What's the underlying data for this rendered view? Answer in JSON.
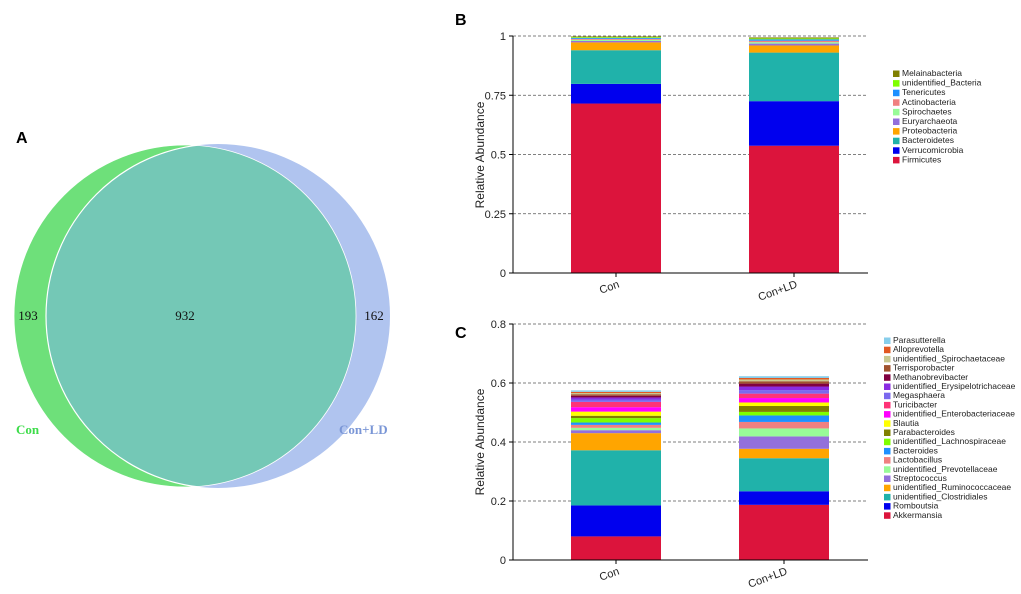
{
  "panels": {
    "A": "A",
    "B": "B",
    "C": "C"
  },
  "venn": {
    "left_label": "Con",
    "right_label": "Con+LD",
    "left_only": "193",
    "shared": "932",
    "right_only": "162",
    "left_color": "#6ee07a",
    "right_color": "#b0c4ef",
    "overlap_color": "#74c8b6",
    "left_label_color": "#3ddc4a",
    "right_label_color": "#7a96d6"
  },
  "chart_data": [
    {
      "type": "bar",
      "stacked": true,
      "panel": "B",
      "ylabel": "Relative Abundance",
      "xlabel": "",
      "ylim": [
        0,
        1
      ],
      "yticks": [
        0,
        0.25,
        0.5,
        0.75,
        1
      ],
      "ytick_labels": [
        "0",
        "0.25",
        "0.5",
        "0.75",
        "1"
      ],
      "categories": [
        "Con",
        "Con+LD"
      ],
      "series": [
        {
          "name": "Firmicutes",
          "color": "#dc143c",
          "values": [
            0.715,
            0.537
          ]
        },
        {
          "name": "Verrucomicrobia",
          "color": "#0000ee",
          "values": [
            0.083,
            0.188
          ]
        },
        {
          "name": "Bacteroidetes",
          "color": "#20b2aa",
          "values": [
            0.142,
            0.205
          ]
        },
        {
          "name": "Proteobacteria",
          "color": "#ffa500",
          "values": [
            0.033,
            0.03
          ]
        },
        {
          "name": "Euryarchaeota",
          "color": "#9370db",
          "values": [
            0.006,
            0.008
          ]
        },
        {
          "name": "Spirochaetes",
          "color": "#98fb98",
          "values": [
            0.005,
            0.006
          ]
        },
        {
          "name": "Actinobacteria",
          "color": "#f08080",
          "values": [
            0.004,
            0.006
          ]
        },
        {
          "name": "Tenericutes",
          "color": "#1e90ff",
          "values": [
            0.004,
            0.006
          ]
        },
        {
          "name": "unidentified_Bacteria",
          "color": "#7fff00",
          "values": [
            0.003,
            0.004
          ]
        },
        {
          "name": "Melainabacteria",
          "color": "#808000",
          "values": [
            0.003,
            0.004
          ]
        }
      ]
    },
    {
      "type": "bar",
      "stacked": true,
      "panel": "C",
      "ylabel": "Relative Abundance",
      "xlabel": "",
      "ylim": [
        0,
        0.8
      ],
      "yticks": [
        0,
        0.2,
        0.4,
        0.6,
        0.8
      ],
      "ytick_labels": [
        "0",
        "0.2",
        "0.4",
        "0.6",
        "0.8"
      ],
      "categories": [
        "Con",
        "Con+LD"
      ],
      "series": [
        {
          "name": "Akkermansia",
          "color": "#dc143c",
          "values": [
            0.08,
            0.187
          ]
        },
        {
          "name": "Romboutsia",
          "color": "#0000ee",
          "values": [
            0.105,
            0.046
          ]
        },
        {
          "name": "unidentified_Clostridiales",
          "color": "#20b2aa",
          "values": [
            0.187,
            0.112
          ]
        },
        {
          "name": "unidentified_Ruminococcaceae",
          "color": "#ffa500",
          "values": [
            0.058,
            0.032
          ]
        },
        {
          "name": "Streptococcus",
          "color": "#9370db",
          "values": [
            0.01,
            0.042
          ]
        },
        {
          "name": "unidentified_Prevotellaceae",
          "color": "#98fb98",
          "values": [
            0.008,
            0.027
          ]
        },
        {
          "name": "Lactobacillus",
          "color": "#f08080",
          "values": [
            0.01,
            0.022
          ]
        },
        {
          "name": "Bacteroides",
          "color": "#1e90ff",
          "values": [
            0.008,
            0.022
          ]
        },
        {
          "name": "unidentified_Lachnospiraceae",
          "color": "#7fff00",
          "values": [
            0.015,
            0.012
          ]
        },
        {
          "name": "Parabacteroides",
          "color": "#808000",
          "values": [
            0.008,
            0.02
          ]
        },
        {
          "name": "Blautia",
          "color": "#ffff00",
          "values": [
            0.014,
            0.012
          ]
        },
        {
          "name": "unidentified_Enterobacteriaceae",
          "color": "#ff00ff",
          "values": [
            0.015,
            0.015
          ]
        },
        {
          "name": "Turicibacter",
          "color": "#ff3377",
          "values": [
            0.018,
            0.015
          ]
        },
        {
          "name": "Megasphaera",
          "color": "#7b68ee",
          "values": [
            0.008,
            0.012
          ]
        },
        {
          "name": "unidentified_Erysipelotrichaceae",
          "color": "#8a2be2",
          "values": [
            0.007,
            0.012
          ]
        },
        {
          "name": "Methanobrevibacter",
          "color": "#800040",
          "values": [
            0.006,
            0.01
          ]
        },
        {
          "name": "Terrisporobacter",
          "color": "#a0522d",
          "values": [
            0.005,
            0.008
          ]
        },
        {
          "name": "unidentified_Spirochaetaceae",
          "color": "#c8c890",
          "values": [
            0.004,
            0.006
          ]
        },
        {
          "name": "Alloprevotella",
          "color": "#e25822",
          "values": [
            0.004,
            0.005
          ]
        },
        {
          "name": "Parasutterella",
          "color": "#87ceeb",
          "values": [
            0.005,
            0.006
          ]
        }
      ]
    }
  ]
}
